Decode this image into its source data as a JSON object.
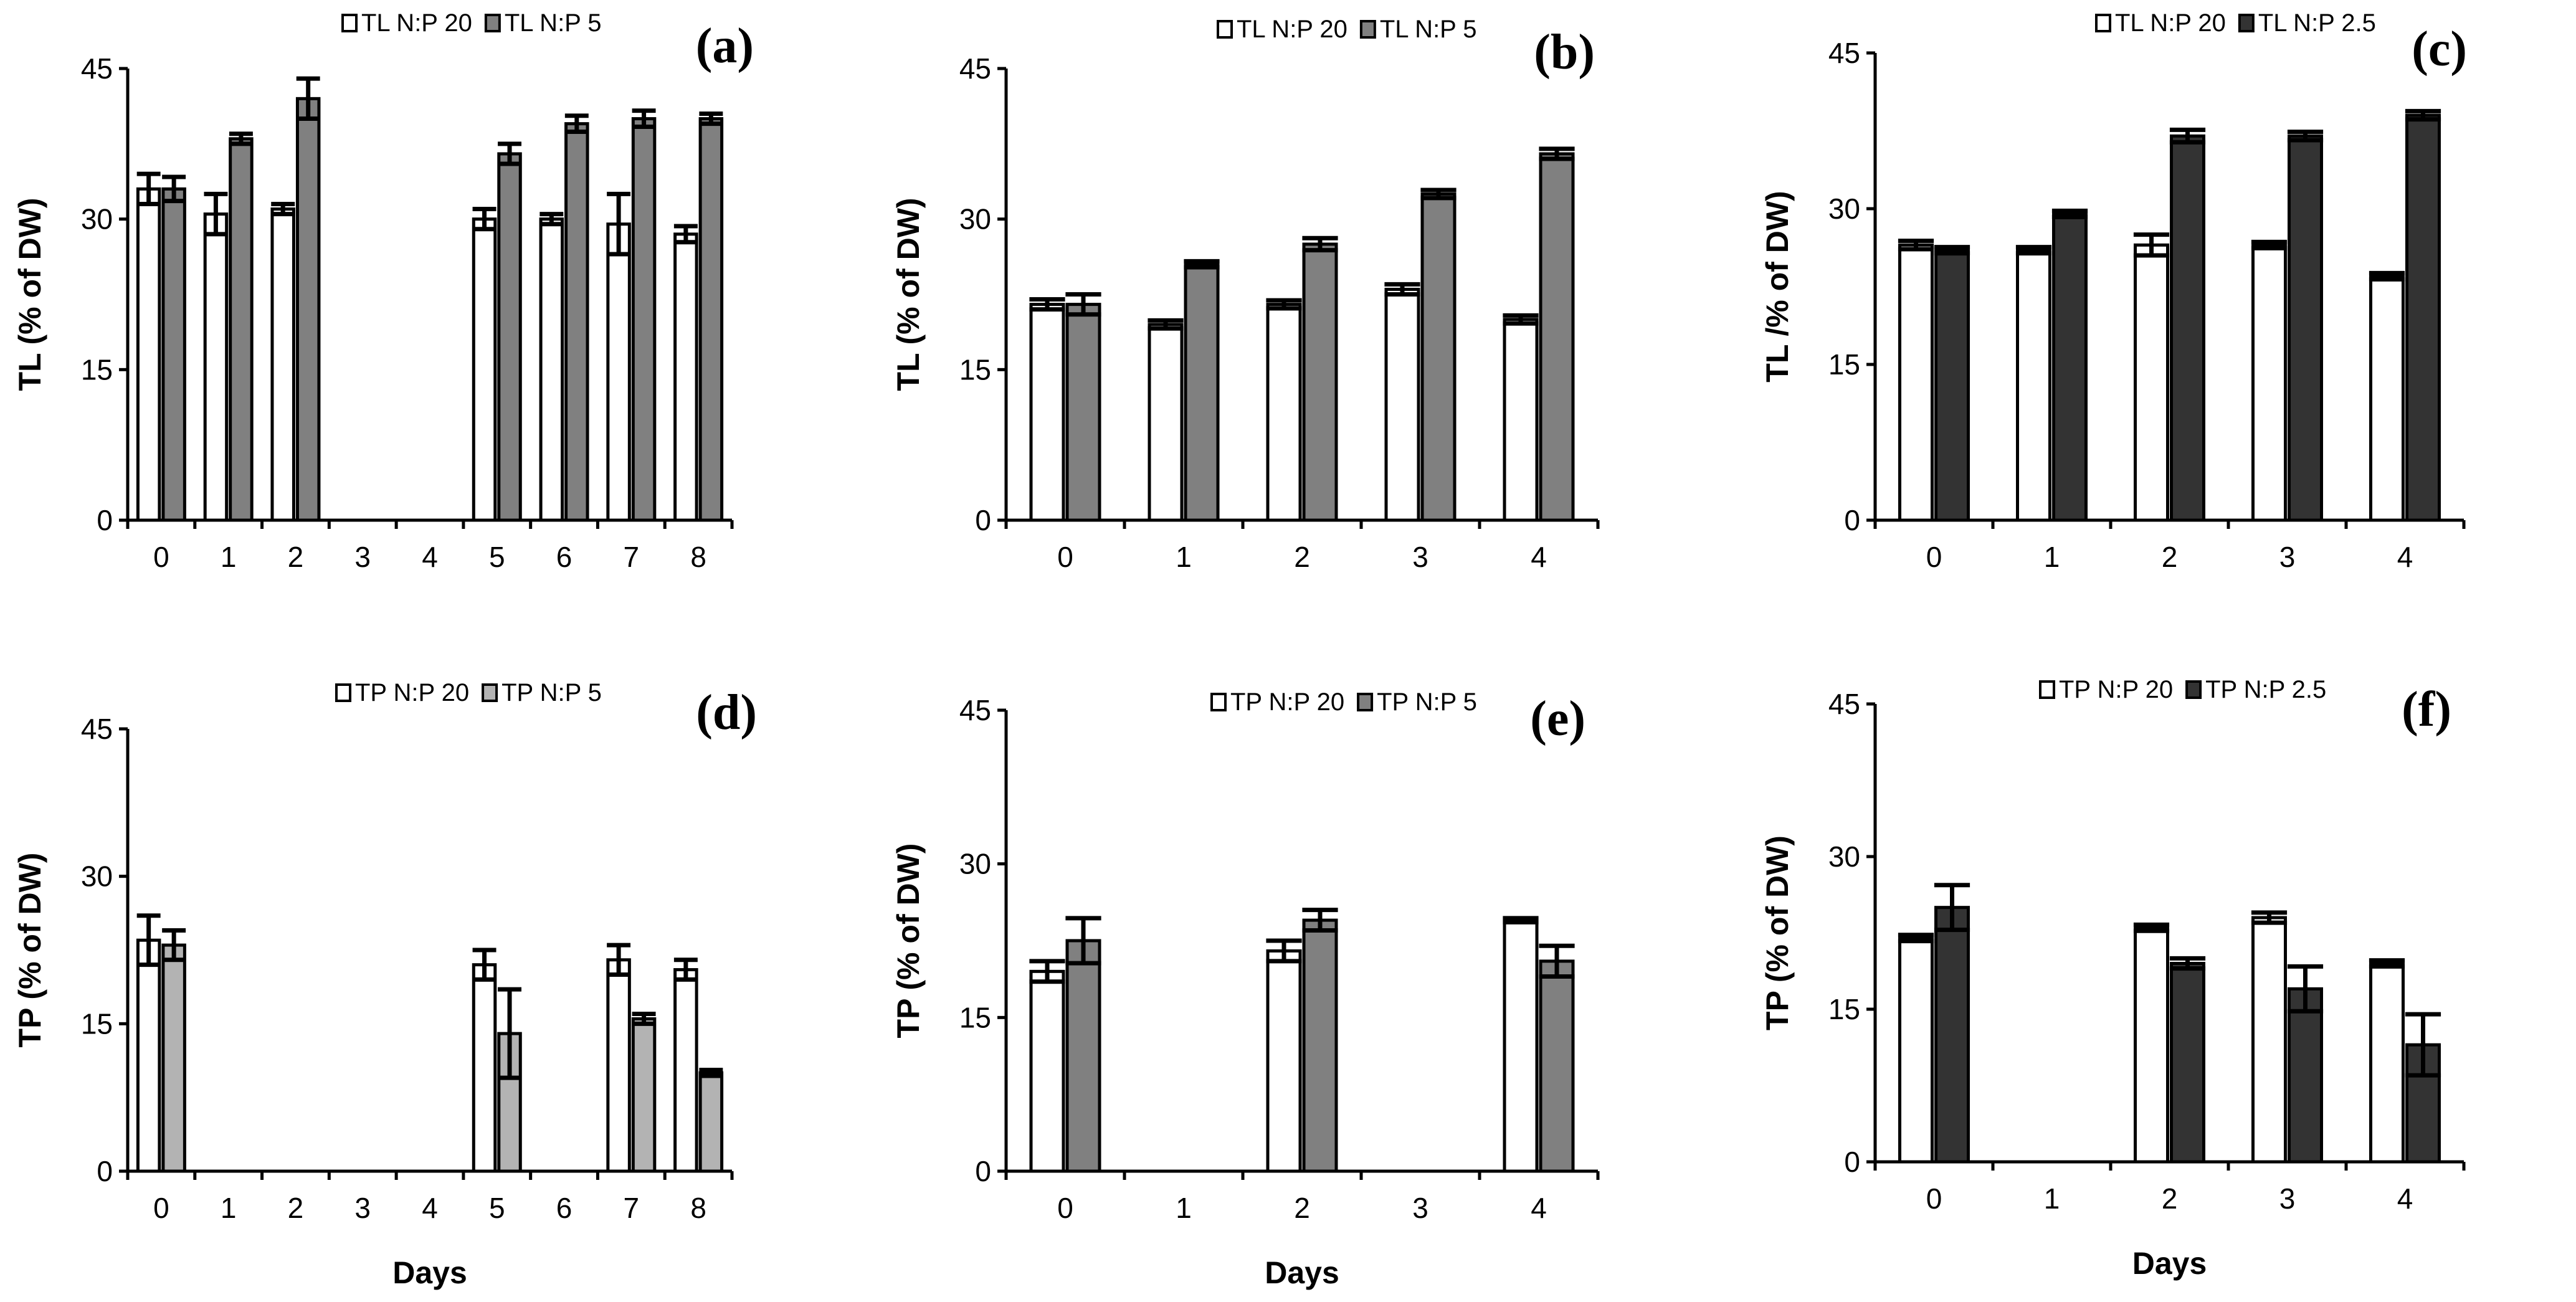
{
  "chart_data": [
    {
      "panel": "(a)",
      "type": "bar",
      "ylabel": "TL (% of DW)",
      "xlabel": "",
      "ylim": [
        0,
        45
      ],
      "yticks": [
        0,
        15,
        30,
        45
      ],
      "categories": [
        "0",
        "1",
        "2",
        "3",
        "4",
        "5",
        "6",
        "7",
        "8"
      ],
      "colors": [
        "#ffffff",
        "#808080"
      ],
      "series": [
        {
          "name": "TL N:P 20",
          "values": [
            33,
            30.5,
            31,
            null,
            null,
            30,
            30,
            29.5,
            28.5
          ],
          "errors": [
            1.5,
            2,
            0.5,
            null,
            null,
            1,
            0.5,
            3,
            0.8
          ]
        },
        {
          "name": "TL N:P 5",
          "values": [
            33,
            38,
            42,
            null,
            null,
            36.5,
            39.5,
            40,
            40
          ],
          "errors": [
            1.2,
            0.5,
            2,
            null,
            null,
            1,
            0.8,
            0.8,
            0.5
          ]
        }
      ]
    },
    {
      "panel": "(b)",
      "type": "bar",
      "ylabel": "TL (% of DW)",
      "xlabel": "",
      "ylim": [
        0,
        45
      ],
      "yticks": [
        0,
        15,
        30,
        45
      ],
      "categories": [
        "0",
        "1",
        "2",
        "3",
        "4"
      ],
      "colors": [
        "#ffffff",
        "#808080"
      ],
      "series": [
        {
          "name": "TL N:P 20",
          "values": [
            21.5,
            19.5,
            21.5,
            23,
            20
          ],
          "errors": [
            0.5,
            0.4,
            0.4,
            0.5,
            0.4
          ]
        },
        {
          "name": "TL N:P 5",
          "values": [
            21.5,
            25.5,
            27.5,
            32.5,
            36.5
          ],
          "errors": [
            1,
            0.3,
            0.6,
            0.4,
            0.5
          ]
        }
      ]
    },
    {
      "panel": "(c)",
      "type": "bar",
      "ylabel": "TL /% of DW)",
      "xlabel": "",
      "ylim": [
        0,
        45
      ],
      "yticks": [
        0,
        15,
        30,
        45
      ],
      "categories": [
        "0",
        "1",
        "2",
        "3",
        "4"
      ],
      "colors": [
        "#ffffff",
        "#333333"
      ],
      "series": [
        {
          "name": "TL N:P 20",
          "values": [
            26.5,
            26,
            26.5,
            26.5,
            23.5
          ],
          "errors": [
            0.4,
            0.3,
            1,
            0.3,
            0.3
          ]
        },
        {
          "name": "TL N:P 2.5",
          "values": [
            26,
            29.5,
            37,
            37,
            39
          ],
          "errors": [
            0.3,
            0.3,
            0.6,
            0.4,
            0.4
          ]
        }
      ]
    },
    {
      "panel": "(d)",
      "type": "bar",
      "ylabel": "TP (% of DW)",
      "xlabel": "Days",
      "ylim": [
        0,
        45
      ],
      "yticks": [
        0,
        15,
        30,
        45
      ],
      "categories": [
        "0",
        "1",
        "2",
        "3",
        "4",
        "5",
        "6",
        "7",
        "8"
      ],
      "colors": [
        "#ffffff",
        "#b3b3b3"
      ],
      "series": [
        {
          "name": "TP N:P 20",
          "values": [
            23.5,
            null,
            null,
            null,
            null,
            21,
            null,
            21.5,
            20.5
          ],
          "errors": [
            2.5,
            null,
            null,
            null,
            null,
            1.5,
            null,
            1.5,
            1
          ]
        },
        {
          "name": "TP N:P 5",
          "values": [
            23,
            null,
            null,
            null,
            null,
            14,
            null,
            15.5,
            10
          ],
          "errors": [
            1.5,
            null,
            null,
            null,
            null,
            4.5,
            null,
            0.5,
            0.3
          ]
        }
      ]
    },
    {
      "panel": "(e)",
      "type": "bar",
      "ylabel": "TP (% of DW)",
      "xlabel": "Days",
      "ylim": [
        0,
        45
      ],
      "yticks": [
        0,
        15,
        30,
        45
      ],
      "categories": [
        "0",
        "1",
        "2",
        "3",
        "4"
      ],
      "colors": [
        "#ffffff",
        "#808080"
      ],
      "series": [
        {
          "name": "TP N:P 20",
          "values": [
            19.5,
            null,
            21.5,
            null,
            24.5
          ],
          "errors": [
            1,
            null,
            1,
            null,
            0.2
          ]
        },
        {
          "name": "TP N:P 5",
          "values": [
            22.5,
            null,
            24.5,
            null,
            20.5
          ],
          "errors": [
            2.2,
            null,
            1,
            null,
            1.5
          ]
        }
      ]
    },
    {
      "panel": "(f)",
      "type": "bar",
      "ylabel": "TP (% of DW)",
      "xlabel": "Days",
      "ylim": [
        0,
        45
      ],
      "yticks": [
        0,
        15,
        30,
        45
      ],
      "categories": [
        "0",
        "1",
        "2",
        "3",
        "4"
      ],
      "colors": [
        "#ffffff",
        "#333333"
      ],
      "series": [
        {
          "name": "TP N:P 20",
          "values": [
            22,
            null,
            23,
            24,
            19.5
          ],
          "errors": [
            0.3,
            null,
            0.3,
            0.5,
            0.3
          ]
        },
        {
          "name": "TP N:P 2.5",
          "values": [
            25,
            null,
            19.5,
            17,
            11.5
          ],
          "errors": [
            2.2,
            null,
            0.5,
            2.2,
            3
          ]
        }
      ]
    }
  ]
}
